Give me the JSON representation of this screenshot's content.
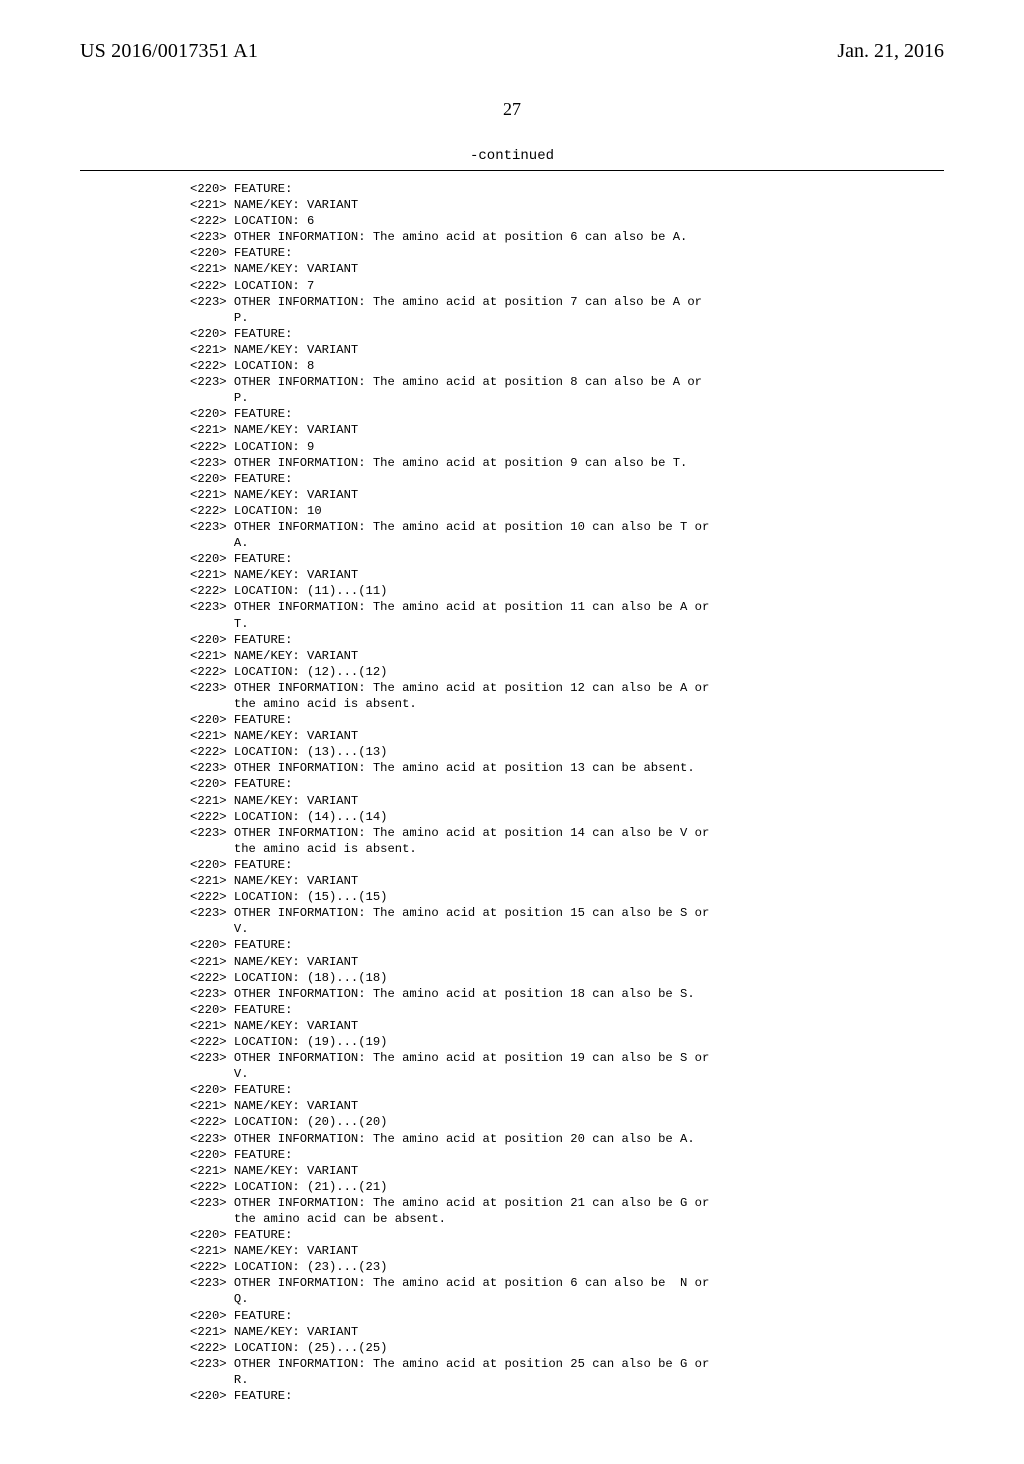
{
  "header": {
    "pub_id": "US 2016/0017351 A1",
    "pub_date": "Jan. 21, 2016"
  },
  "page_number": "27",
  "continued_label": "-continued",
  "listing_lines": [
    "<220> FEATURE:",
    "<221> NAME/KEY: VARIANT",
    "<222> LOCATION: 6",
    "<223> OTHER INFORMATION: The amino acid at position 6 can also be A.",
    "<220> FEATURE:",
    "<221> NAME/KEY: VARIANT",
    "<222> LOCATION: 7",
    "<223> OTHER INFORMATION: The amino acid at position 7 can also be A or",
    "      P.",
    "<220> FEATURE:",
    "<221> NAME/KEY: VARIANT",
    "<222> LOCATION: 8",
    "<223> OTHER INFORMATION: The amino acid at position 8 can also be A or",
    "      P.",
    "<220> FEATURE:",
    "<221> NAME/KEY: VARIANT",
    "<222> LOCATION: 9",
    "<223> OTHER INFORMATION: The amino acid at position 9 can also be T.",
    "<220> FEATURE:",
    "<221> NAME/KEY: VARIANT",
    "<222> LOCATION: 10",
    "<223> OTHER INFORMATION: The amino acid at position 10 can also be T or",
    "      A.",
    "<220> FEATURE:",
    "<221> NAME/KEY: VARIANT",
    "<222> LOCATION: (11)...(11)",
    "<223> OTHER INFORMATION: The amino acid at position 11 can also be A or",
    "      T.",
    "<220> FEATURE:",
    "<221> NAME/KEY: VARIANT",
    "<222> LOCATION: (12)...(12)",
    "<223> OTHER INFORMATION: The amino acid at position 12 can also be A or",
    "      the amino acid is absent.",
    "<220> FEATURE:",
    "<221> NAME/KEY: VARIANT",
    "<222> LOCATION: (13)...(13)",
    "<223> OTHER INFORMATION: The amino acid at position 13 can be absent.",
    "<220> FEATURE:",
    "<221> NAME/KEY: VARIANT",
    "<222> LOCATION: (14)...(14)",
    "<223> OTHER INFORMATION: The amino acid at position 14 can also be V or",
    "      the amino acid is absent.",
    "<220> FEATURE:",
    "<221> NAME/KEY: VARIANT",
    "<222> LOCATION: (15)...(15)",
    "<223> OTHER INFORMATION: The amino acid at position 15 can also be S or",
    "      V.",
    "<220> FEATURE:",
    "<221> NAME/KEY: VARIANT",
    "<222> LOCATION: (18)...(18)",
    "<223> OTHER INFORMATION: The amino acid at position 18 can also be S.",
    "<220> FEATURE:",
    "<221> NAME/KEY: VARIANT",
    "<222> LOCATION: (19)...(19)",
    "<223> OTHER INFORMATION: The amino acid at position 19 can also be S or",
    "      V.",
    "<220> FEATURE:",
    "<221> NAME/KEY: VARIANT",
    "<222> LOCATION: (20)...(20)",
    "<223> OTHER INFORMATION: The amino acid at position 20 can also be A.",
    "<220> FEATURE:",
    "<221> NAME/KEY: VARIANT",
    "<222> LOCATION: (21)...(21)",
    "<223> OTHER INFORMATION: The amino acid at position 21 can also be G or",
    "      the amino acid can be absent.",
    "<220> FEATURE:",
    "<221> NAME/KEY: VARIANT",
    "<222> LOCATION: (23)...(23)",
    "<223> OTHER INFORMATION: The amino acid at position 6 can also be  N or",
    "      Q.",
    "<220> FEATURE:",
    "<221> NAME/KEY: VARIANT",
    "<222> LOCATION: (25)...(25)",
    "<223> OTHER INFORMATION: The amino acid at position 25 can also be G or",
    "      R.",
    "<220> FEATURE:"
  ]
}
